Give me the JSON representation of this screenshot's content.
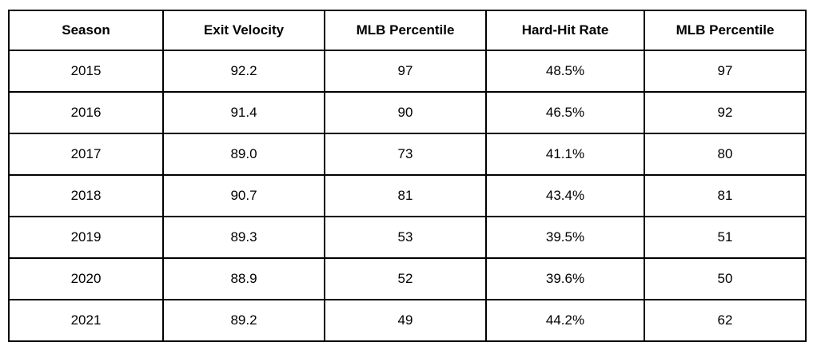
{
  "colors": {
    "background": "#ffffff",
    "border": "#000000",
    "text": "#000000"
  },
  "table": {
    "columns": [
      "Season",
      "Exit Velocity",
      "MLB Percentile",
      "Hard-Hit Rate",
      "MLB Percentile"
    ],
    "rows": [
      [
        "2015",
        "92.2",
        "97",
        "48.5%",
        "97"
      ],
      [
        "2016",
        "91.4",
        "90",
        "46.5%",
        "92"
      ],
      [
        "2017",
        "89.0",
        "73",
        "41.1%",
        "80"
      ],
      [
        "2018",
        "90.7",
        "81",
        "43.4%",
        "81"
      ],
      [
        "2019",
        "89.3",
        "53",
        "39.5%",
        "51"
      ],
      [
        "2020",
        "88.9",
        "52",
        "39.6%",
        "50"
      ],
      [
        "2021",
        "89.2",
        "49",
        "44.2%",
        "62"
      ]
    ]
  },
  "chart_data": {
    "type": "table",
    "title": "",
    "columns": [
      "Season",
      "Exit Velocity",
      "MLB Percentile",
      "Hard-Hit Rate",
      "MLB Percentile"
    ],
    "rows": [
      {
        "season": 2015,
        "exit_velocity": 92.2,
        "exit_velocity_mlb_percentile": 97,
        "hard_hit_rate_pct": 48.5,
        "hard_hit_rate_mlb_percentile": 97
      },
      {
        "season": 2016,
        "exit_velocity": 91.4,
        "exit_velocity_mlb_percentile": 90,
        "hard_hit_rate_pct": 46.5,
        "hard_hit_rate_mlb_percentile": 92
      },
      {
        "season": 2017,
        "exit_velocity": 89.0,
        "exit_velocity_mlb_percentile": 73,
        "hard_hit_rate_pct": 41.1,
        "hard_hit_rate_mlb_percentile": 80
      },
      {
        "season": 2018,
        "exit_velocity": 90.7,
        "exit_velocity_mlb_percentile": 81,
        "hard_hit_rate_pct": 43.4,
        "hard_hit_rate_mlb_percentile": 81
      },
      {
        "season": 2019,
        "exit_velocity": 89.3,
        "exit_velocity_mlb_percentile": 53,
        "hard_hit_rate_pct": 39.5,
        "hard_hit_rate_mlb_percentile": 51
      },
      {
        "season": 2020,
        "exit_velocity": 88.9,
        "exit_velocity_mlb_percentile": 52,
        "hard_hit_rate_pct": 39.6,
        "hard_hit_rate_mlb_percentile": 50
      },
      {
        "season": 2021,
        "exit_velocity": 89.2,
        "exit_velocity_mlb_percentile": 49,
        "hard_hit_rate_pct": 44.2,
        "hard_hit_rate_mlb_percentile": 62
      }
    ]
  }
}
